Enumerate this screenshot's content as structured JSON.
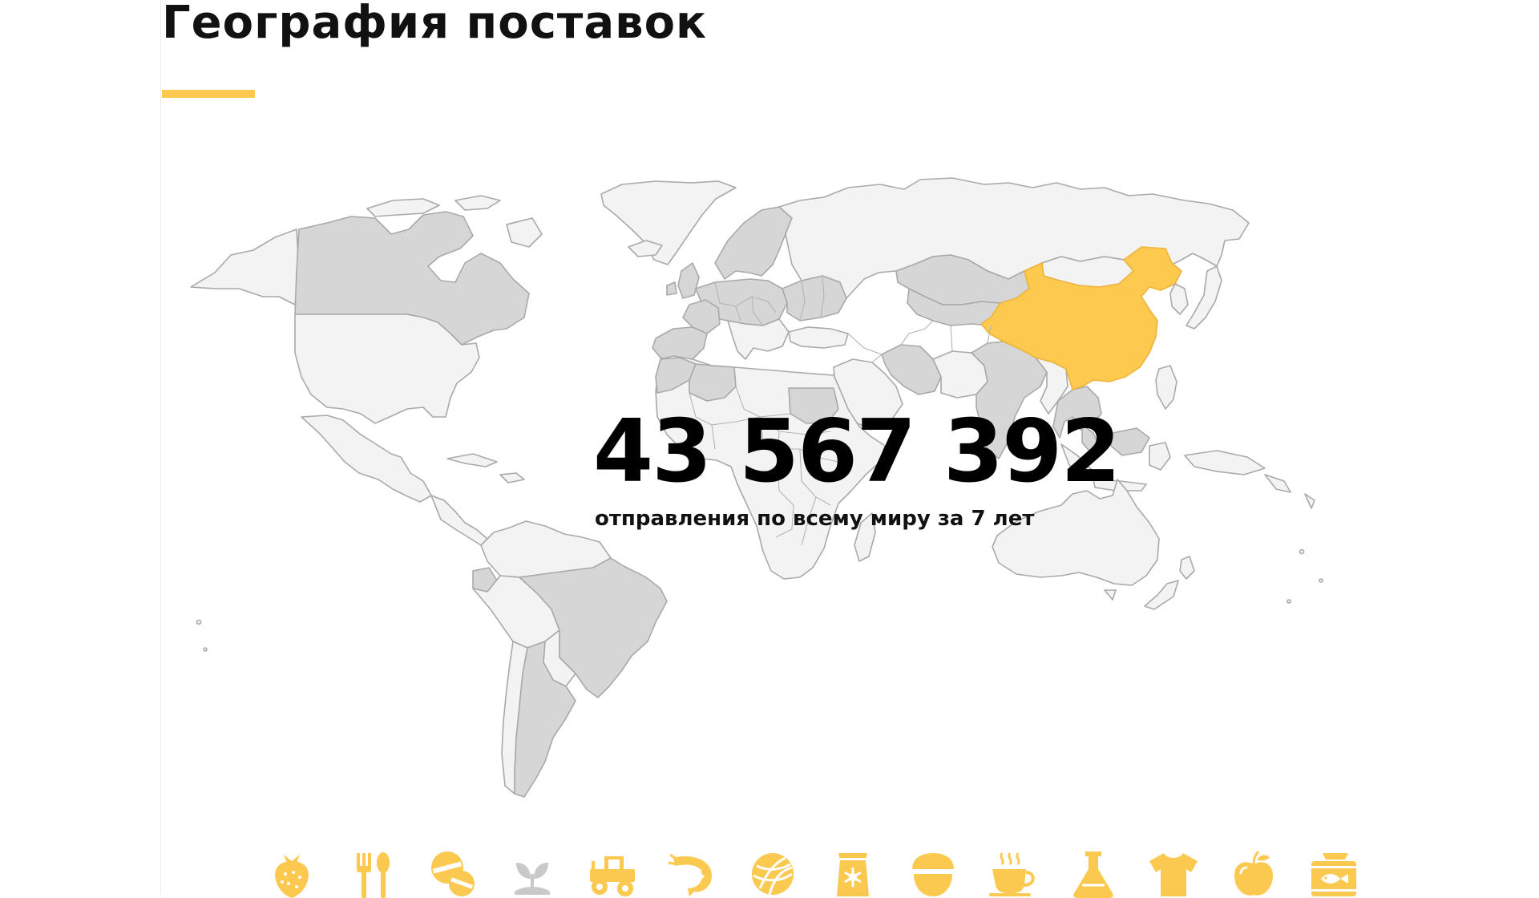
{
  "section": {
    "title": "География поставок"
  },
  "stats": {
    "shipments_count": "43 567 392",
    "shipments_caption": "отправления по всему миру за 7 лет"
  },
  "map": {
    "highlighted_country": "China"
  },
  "colors": {
    "accent": "#fbc94f",
    "country_default": "#f3f3f3",
    "country_active": "#d6d6d6",
    "country_highlight": "#fdc94f"
  },
  "categories": [
    {
      "icon": "strawberry-icon"
    },
    {
      "icon": "cutlery-icon"
    },
    {
      "icon": "pills-icon"
    },
    {
      "icon": "seedling-icon",
      "state": "inactive"
    },
    {
      "icon": "tractor-icon"
    },
    {
      "icon": "shrimp-icon"
    },
    {
      "icon": "yarn-ball-icon"
    },
    {
      "icon": "seed-bag-icon"
    },
    {
      "icon": "nut-icon"
    },
    {
      "icon": "coffee-cup-icon"
    },
    {
      "icon": "flask-icon"
    },
    {
      "icon": "tshirt-icon"
    },
    {
      "icon": "apple-icon"
    },
    {
      "icon": "fish-can-icon"
    }
  ]
}
